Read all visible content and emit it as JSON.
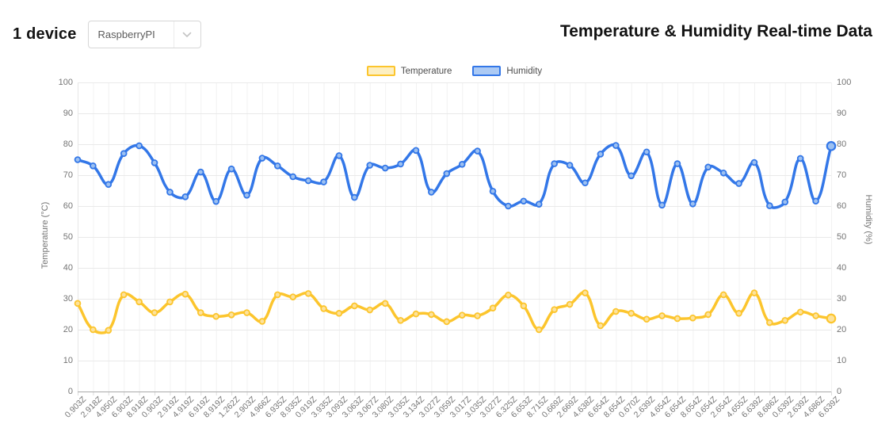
{
  "header": {
    "device_count_label": "1 device",
    "device_dropdown": {
      "selected": "RaspberryPI",
      "chevron_icon": "chevron-down"
    },
    "title": "Temperature & Humidity Real-time Data"
  },
  "chart_data": {
    "type": "line",
    "title": "Temperature & Humidity Real-time Data",
    "legend_position": "top",
    "grid": true,
    "line_tension": 0.4,
    "axes": {
      "left": {
        "title": "Temperature (°C)",
        "min": 0,
        "max": 100,
        "step": 10,
        "ticks": [
          0,
          10,
          20,
          30,
          40,
          50,
          60,
          70,
          80,
          90,
          100
        ]
      },
      "right": {
        "title": "Humidity (%)",
        "min": 0,
        "max": 100,
        "step": 10,
        "ticks": [
          0,
          10,
          20,
          30,
          40,
          50,
          60,
          70,
          80,
          90,
          100
        ]
      }
    },
    "x_labels": [
      "0.903Z",
      "2.918Z",
      "4.950Z",
      "6.903Z",
      "8.918Z",
      "0.903Z",
      "2.919Z",
      "4.919Z",
      "6.919Z",
      "8.919Z",
      "1.262Z",
      "2.903Z",
      "4.966Z",
      "6.935Z",
      "8.935Z",
      "0.919Z",
      "3.935Z",
      "3.093Z",
      "3.063Z",
      "3.067Z",
      "3.080Z",
      "3.035Z",
      "3.134Z",
      "3.027Z",
      "3.059Z",
      "3.017Z",
      "3.035Z",
      "3.027Z",
      "6.325Z",
      "6.653Z",
      "8.715Z",
      "0.669Z",
      "2.669Z",
      "4.638Z",
      "6.654Z",
      "8.654Z",
      "0.670Z",
      "2.639Z",
      "4.654Z",
      "6.654Z",
      "8.654Z",
      "0.654Z",
      "2.654Z",
      "4.655Z",
      "6.639Z",
      "8.686Z",
      "0.639Z",
      "2.639Z",
      "4.686Z",
      "6.639Z"
    ],
    "series": [
      {
        "name": "Temperature",
        "axis": "left",
        "color": "#FCC52D",
        "marker_fill": "#FDE29B",
        "legend_fill": "#FDEFC1",
        "values": [
          28.5,
          20,
          19.8,
          31.3,
          29,
          25.5,
          29,
          31.5,
          25.5,
          24.3,
          24.8,
          25.5,
          22.7,
          31.3,
          30.6,
          31.7,
          26.8,
          25.3,
          27.7,
          26.4,
          28.5,
          23,
          25.1,
          24.9,
          22.6,
          24.7,
          24.5,
          27,
          31.2,
          27.7,
          20,
          26.5,
          28.2,
          31.9,
          21.3,
          25.9,
          25.3,
          23.4,
          24.5,
          23.6,
          23.8,
          24.9,
          31.3,
          25.3,
          31.9,
          22.3,
          23,
          25.7,
          24.5,
          23.6
        ]
      },
      {
        "name": "Humidity",
        "axis": "right",
        "color": "#3377E8",
        "marker_fill": "#9CC0F1",
        "legend_fill": "#ACCAF4",
        "values": [
          75,
          73,
          67,
          77,
          79.5,
          74,
          64.5,
          63,
          71,
          61.5,
          72,
          63.5,
          75.5,
          73,
          69.5,
          68.2,
          67.8,
          76.3,
          62.8,
          73.2,
          72.3,
          73.6,
          78,
          64.5,
          70.5,
          73.5,
          77.8,
          64.8,
          60,
          61.6,
          60.6,
          73.7,
          73.2,
          67.5,
          76.8,
          79.6,
          69.8,
          77.5,
          60.3,
          73.7,
          60.7,
          72.6,
          70.7,
          67.3,
          74.1,
          60.1,
          61.3,
          75.4,
          61.6,
          79.4
        ]
      }
    ]
  }
}
